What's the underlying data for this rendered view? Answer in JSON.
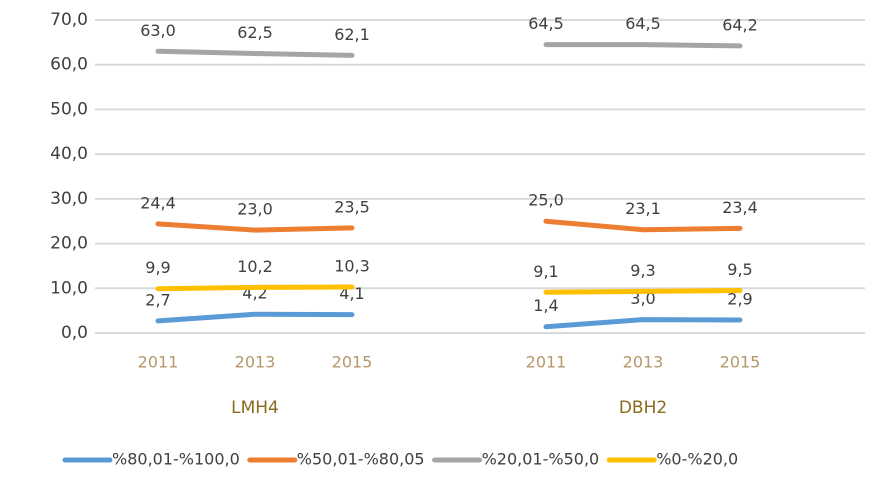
{
  "chart_data": {
    "type": "line",
    "categories": [
      "2011",
      "2013",
      "2015",
      null,
      "2011",
      "2013",
      "2015"
    ],
    "group_labels": [
      "LMH4",
      "DBH2"
    ],
    "series": [
      {
        "name": "%80,01-%100,0",
        "color": "#5b9bd5",
        "values": [
          2.7,
          4.2,
          4.1,
          null,
          1.4,
          3.0,
          2.9
        ],
        "value_labels": [
          "2,7",
          "4,2",
          "4,1",
          null,
          "1,4",
          "3,0",
          "2,9"
        ]
      },
      {
        "name": "%50,01-%80,05",
        "color": "#ed7d31",
        "values": [
          24.4,
          23.0,
          23.5,
          null,
          25.0,
          23.1,
          23.4
        ],
        "value_labels": [
          "24,4",
          "23,0",
          "23,5",
          null,
          "25,0",
          "23,1",
          "23,4"
        ]
      },
      {
        "name": "%20,01-%50,0",
        "color": "#a5a5a5",
        "values": [
          63.0,
          62.5,
          62.1,
          null,
          64.5,
          64.5,
          64.2
        ],
        "value_labels": [
          "63,0",
          "62,5",
          "62,1",
          null,
          "64,5",
          "64,5",
          "64,2"
        ]
      },
      {
        "name": "%0-%20,0",
        "color": "#ffc000",
        "values": [
          9.9,
          10.2,
          10.3,
          null,
          9.1,
          9.3,
          9.5
        ],
        "value_labels": [
          "9,9",
          "10,2",
          "10,3",
          null,
          "9,1",
          "9,3",
          "9,5"
        ]
      }
    ],
    "ylim": [
      0,
      70
    ],
    "yticks": [
      {
        "value": 0,
        "label": "0,0"
      },
      {
        "value": 10,
        "label": "10,0"
      },
      {
        "value": 20,
        "label": "20,0"
      },
      {
        "value": 30,
        "label": "30,0"
      },
      {
        "value": 40,
        "label": "40,0"
      },
      {
        "value": 50,
        "label": "50,0"
      },
      {
        "value": 60,
        "label": "60,0"
      },
      {
        "value": 70,
        "label": "70,0"
      }
    ],
    "grid": true
  }
}
